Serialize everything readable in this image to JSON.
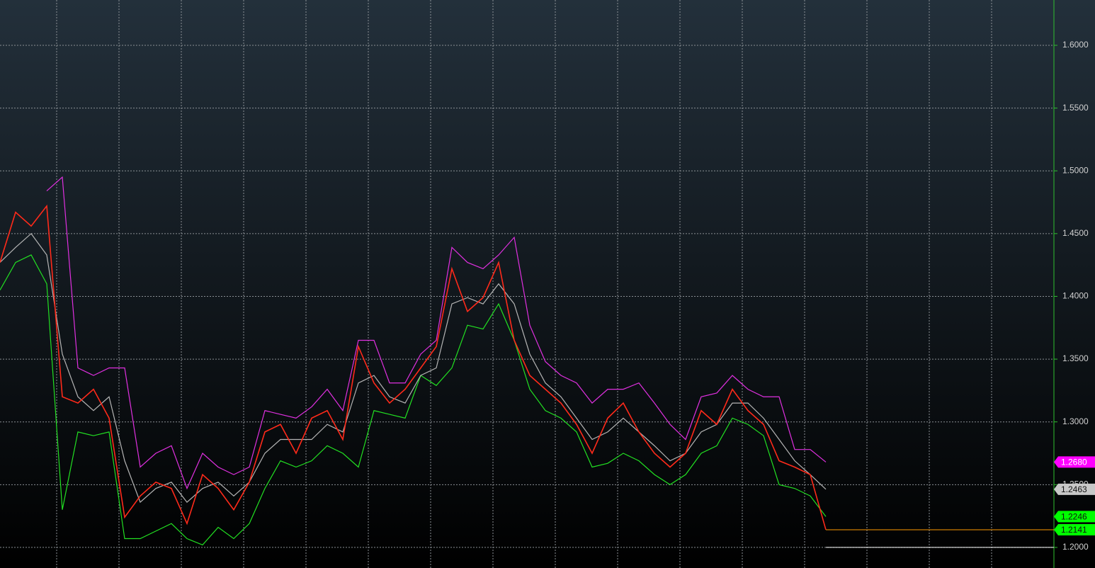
{
  "chart_data": {
    "type": "line",
    "grid": true,
    "ylim": [
      1.1836,
      1.6361
    ],
    "yticks": [
      {
        "value": 1.2,
        "label": "1.2000"
      },
      {
        "value": 1.25,
        "label": "1.2500"
      },
      {
        "value": 1.3,
        "label": "1.3000"
      },
      {
        "value": 1.35,
        "label": "1.3500"
      },
      {
        "value": 1.4,
        "label": "1.4000"
      },
      {
        "value": 1.45,
        "label": "1.4500"
      },
      {
        "value": 1.5,
        "label": "1.5000"
      },
      {
        "value": 1.55,
        "label": "1.5500"
      },
      {
        "value": 1.6,
        "label": "1.6000"
      }
    ],
    "series": [
      {
        "color": "#ff2a1a",
        "last_label": {
          "value": 1.2141,
          "label": "1.2141"
        },
        "tag_color": "#00ff00",
        "values": [
          1.427,
          1.467,
          1.456,
          1.472,
          1.32,
          1.315,
          1.326,
          1.303,
          1.224,
          1.241,
          1.252,
          1.247,
          1.219,
          1.258,
          1.247,
          1.23,
          1.252,
          1.292,
          1.298,
          1.275,
          1.303,
          1.309,
          1.286,
          1.36,
          1.331,
          1.315,
          1.326,
          1.343,
          1.36,
          1.422,
          1.388,
          1.399,
          1.427,
          1.365,
          1.337,
          1.326,
          1.315,
          1.298,
          1.275,
          1.303,
          1.315,
          1.292,
          1.275,
          1.264,
          1.275,
          1.309,
          1.298,
          1.326,
          1.309,
          1.298,
          1.269,
          1.264,
          1.258,
          1.2141
        ]
      },
      {
        "color": "#e030e0",
        "last_label": {
          "value": 1.268,
          "label": "1.2680"
        },
        "tag_color": "#ff00ff",
        "values": [
          null,
          null,
          null,
          1.484,
          1.495,
          1.343,
          1.337,
          1.343,
          1.343,
          1.264,
          1.275,
          1.281,
          1.247,
          1.275,
          1.264,
          1.258,
          1.264,
          1.309,
          1.306,
          1.303,
          1.312,
          1.326,
          1.309,
          1.365,
          1.365,
          1.331,
          1.331,
          1.354,
          1.365,
          1.439,
          1.427,
          1.422,
          1.433,
          1.447,
          1.377,
          1.348,
          1.337,
          1.331,
          1.315,
          1.326,
          1.326,
          1.331,
          1.315,
          1.298,
          1.286,
          1.32,
          1.323,
          1.337,
          1.326,
          1.32,
          1.32,
          1.278,
          1.278,
          1.268
        ]
      },
      {
        "color": "#b4b4b4",
        "last_label": {
          "value": 1.2463,
          "label": "1.2463"
        },
        "tag_color": "#c8c8c8",
        "values": [
          1.427,
          1.439,
          1.45,
          1.433,
          1.354,
          1.32,
          1.309,
          1.32,
          1.269,
          1.236,
          1.247,
          1.252,
          1.236,
          1.247,
          1.252,
          1.241,
          1.252,
          1.275,
          1.286,
          1.286,
          1.286,
          1.298,
          1.292,
          1.331,
          1.337,
          1.32,
          1.315,
          1.337,
          1.343,
          1.394,
          1.399,
          1.394,
          1.41,
          1.394,
          1.354,
          1.331,
          1.32,
          1.303,
          1.286,
          1.292,
          1.303,
          1.292,
          1.281,
          1.269,
          1.275,
          1.292,
          1.298,
          1.315,
          1.315,
          1.303,
          1.286,
          1.269,
          1.258,
          1.2463
        ]
      },
      {
        "color": "#22e022",
        "last_label": {
          "value": 1.2246,
          "label": "1.2246"
        },
        "tag_color": "#00ff00",
        "values": [
          1.405,
          1.427,
          1.433,
          1.41,
          1.23,
          1.292,
          1.289,
          1.292,
          1.207,
          1.207,
          1.213,
          1.219,
          1.207,
          1.202,
          1.216,
          1.207,
          1.219,
          1.247,
          1.269,
          1.264,
          1.269,
          1.281,
          1.275,
          1.264,
          1.309,
          1.306,
          1.303,
          1.337,
          1.329,
          1.343,
          1.377,
          1.374,
          1.394,
          1.365,
          1.326,
          1.309,
          1.303,
          1.292,
          1.264,
          1.267,
          1.275,
          1.269,
          1.258,
          1.25,
          1.258,
          1.275,
          1.281,
          1.303,
          1.298,
          1.289,
          1.25,
          1.247,
          1.241,
          1.2246
        ]
      }
    ],
    "reference_lines": [
      {
        "value": 1.2,
        "color": "#ffffff"
      },
      {
        "value": 1.2141,
        "color": "#ff9900"
      }
    ]
  }
}
